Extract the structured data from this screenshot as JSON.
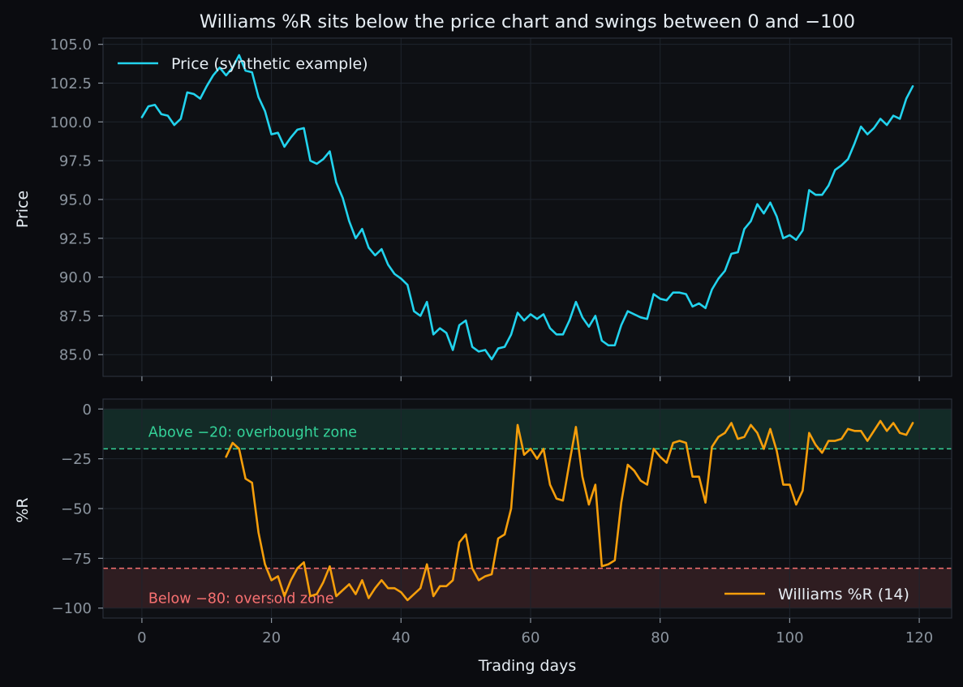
{
  "chart_data": [
    {
      "type": "line",
      "title": "Williams %R sits below the price chart and swings between 0 and −100",
      "xlabel": "",
      "ylabel": "Price",
      "xlim": [
        -6,
        125
      ],
      "ylim": [
        83.6,
        105.4
      ],
      "y_ticks": [
        85.0,
        87.5,
        90.0,
        92.5,
        95.0,
        97.5,
        100.0,
        102.5,
        105.0
      ],
      "y_tick_labels": [
        "85.0",
        "87.5",
        "90.0",
        "92.5",
        "95.0",
        "97.5",
        "100.0",
        "102.5",
        "105.0"
      ],
      "grid": true,
      "legend_position": "top-left",
      "series": [
        {
          "name": "Price (synthetic example)",
          "color": "#22d3ee",
          "x_start": 0,
          "values": [
            100.3,
            101.0,
            101.1,
            100.5,
            100.4,
            99.8,
            100.2,
            101.9,
            101.8,
            101.5,
            102.3,
            103.0,
            103.5,
            103.0,
            103.5,
            104.3,
            103.3,
            103.2,
            101.6,
            100.7,
            99.2,
            99.3,
            98.4,
            99.0,
            99.5,
            99.6,
            97.5,
            97.3,
            97.6,
            98.1,
            96.1,
            95.1,
            93.6,
            92.5,
            93.1,
            91.9,
            91.4,
            91.8,
            90.8,
            90.2,
            89.9,
            89.5,
            87.8,
            87.5,
            88.4,
            86.3,
            86.7,
            86.4,
            85.3,
            86.9,
            87.2,
            85.5,
            85.2,
            85.3,
            84.7,
            85.4,
            85.5,
            86.3,
            87.7,
            87.2,
            87.6,
            87.3,
            87.6,
            86.7,
            86.3,
            86.3,
            87.2,
            88.4,
            87.4,
            86.8,
            87.5,
            85.9,
            85.6,
            85.6,
            86.9,
            87.8,
            87.6,
            87.4,
            87.3,
            88.9,
            88.6,
            88.5,
            89.0,
            89.0,
            88.9,
            88.1,
            88.3,
            88.0,
            89.2,
            89.9,
            90.4,
            91.5,
            91.6,
            93.1,
            93.6,
            94.7,
            94.1,
            94.8,
            93.9,
            92.5,
            92.7,
            92.4,
            93.0,
            95.6,
            95.3,
            95.3,
            95.9,
            96.9,
            97.2,
            97.6,
            98.6,
            99.7,
            99.2,
            99.6,
            100.2,
            99.8,
            100.4,
            100.2,
            101.5,
            102.3
          ]
        }
      ]
    },
    {
      "type": "line",
      "title": "",
      "xlabel": "Trading days",
      "ylabel": "%R",
      "xlim": [
        -6,
        125
      ],
      "ylim": [
        -105,
        5
      ],
      "x_ticks": [
        0,
        20,
        40,
        60,
        80,
        100,
        120
      ],
      "x_tick_labels": [
        "0",
        "20",
        "40",
        "60",
        "80",
        "100",
        "120"
      ],
      "y_ticks": [
        0,
        -25,
        -50,
        -75,
        -100
      ],
      "y_tick_labels": [
        "0",
        "−25",
        "−50",
        "−75",
        "−100"
      ],
      "grid": true,
      "legend_position": "bottom-right",
      "zones": [
        {
          "from": -20,
          "to": 0,
          "color": "#34d399",
          "line": -20,
          "label": "Above −20: overbought zone",
          "label_x": 1,
          "label_y": -11.5
        },
        {
          "from": -100,
          "to": -80,
          "color": "#f87171",
          "line": -80,
          "label": "Below −80: oversold zone",
          "label_x": 1,
          "label_y": -95
        }
      ],
      "series": [
        {
          "name": "Williams %R (14)",
          "color": "#f59e0b",
          "x_start": 13,
          "values": [
            -24,
            -17,
            -20,
            -35,
            -37,
            -62,
            -78,
            -86,
            -84,
            -94,
            -86,
            -80,
            -77,
            -94,
            -93,
            -87,
            -79,
            -94,
            -91,
            -88,
            -93,
            -86,
            -95,
            -90,
            -86,
            -90,
            -90,
            -92,
            -96,
            -93,
            -90,
            -78,
            -94,
            -89,
            -89,
            -86,
            -67,
            -63,
            -80,
            -86,
            -84,
            -83,
            -65,
            -63,
            -50,
            -8,
            -23,
            -20,
            -25,
            -20,
            -38,
            -45,
            -46,
            -27,
            -9,
            -34,
            -48,
            -38,
            -79,
            -78,
            -76,
            -47,
            -28,
            -31,
            -36,
            -38,
            -20,
            -24,
            -27,
            -17,
            -16,
            -17,
            -34,
            -34,
            -47,
            -19,
            -14,
            -12,
            -7,
            -15,
            -14,
            -8,
            -12,
            -20,
            -10,
            -21,
            -38,
            -38,
            -48,
            -41,
            -12,
            -18,
            -22,
            -16,
            -16,
            -15,
            -10,
            -11,
            -11,
            -16,
            -11,
            -6,
            -11,
            -7,
            -12,
            -13,
            -7
          ]
        }
      ]
    }
  ]
}
